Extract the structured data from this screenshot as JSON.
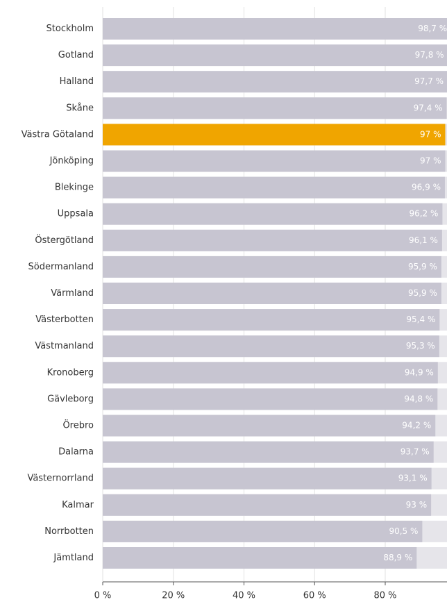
{
  "chart_data": {
    "type": "barh",
    "categories": [
      "Stockholm",
      "Gotland",
      "Halland",
      "Skåne",
      "Västra Götaland",
      "Jönköping",
      "Blekinge",
      "Uppsala",
      "Östergötland",
      "Södermanland",
      "Värmland",
      "Västerbotten",
      "Västmanland",
      "Kronoberg",
      "Gävleborg",
      "Örebro",
      "Dalarna",
      "Västernorrland",
      "Kalmar",
      "Norrbotten",
      "Jämtland"
    ],
    "values": [
      98.7,
      97.8,
      97.7,
      97.4,
      97,
      97,
      96.9,
      96.2,
      96.1,
      95.9,
      95.9,
      95.4,
      95.3,
      94.9,
      94.8,
      94.2,
      93.7,
      93.1,
      93,
      90.5,
      88.9
    ],
    "value_labels": [
      "98,7 %",
      "97,8 %",
      "97,7 %",
      "97,4 %",
      "97 %",
      "97 %",
      "96,9 %",
      "96,2 %",
      "96,1 %",
      "95,9 %",
      "95,9 %",
      "95,4 %",
      "95,3 %",
      "94,9 %",
      "94,8 %",
      "94,2 %",
      "93,7 %",
      "93,1 %",
      "93 %",
      "90,5 %",
      "88,9 %"
    ],
    "colors": [
      "#c7c5d1",
      "#c7c5d1",
      "#c7c5d1",
      "#c7c5d1",
      "#f0a500",
      "#c7c5d1",
      "#c7c5d1",
      "#c7c5d1",
      "#c7c5d1",
      "#c7c5d1",
      "#c7c5d1",
      "#c7c5d1",
      "#c7c5d1",
      "#c7c5d1",
      "#c7c5d1",
      "#c7c5d1",
      "#c7c5d1",
      "#c7c5d1",
      "#c7c5d1",
      "#c7c5d1",
      "#c7c5d1"
    ],
    "xlim": [
      0,
      100
    ],
    "xticks": [
      {
        "value": 0,
        "label": "0 %"
      },
      {
        "value": 20,
        "label": "20 %"
      },
      {
        "value": 40,
        "label": "40 %"
      },
      {
        "value": 60,
        "label": "60 %"
      },
      {
        "value": 80,
        "label": "80 %"
      }
    ],
    "grid": true
  }
}
